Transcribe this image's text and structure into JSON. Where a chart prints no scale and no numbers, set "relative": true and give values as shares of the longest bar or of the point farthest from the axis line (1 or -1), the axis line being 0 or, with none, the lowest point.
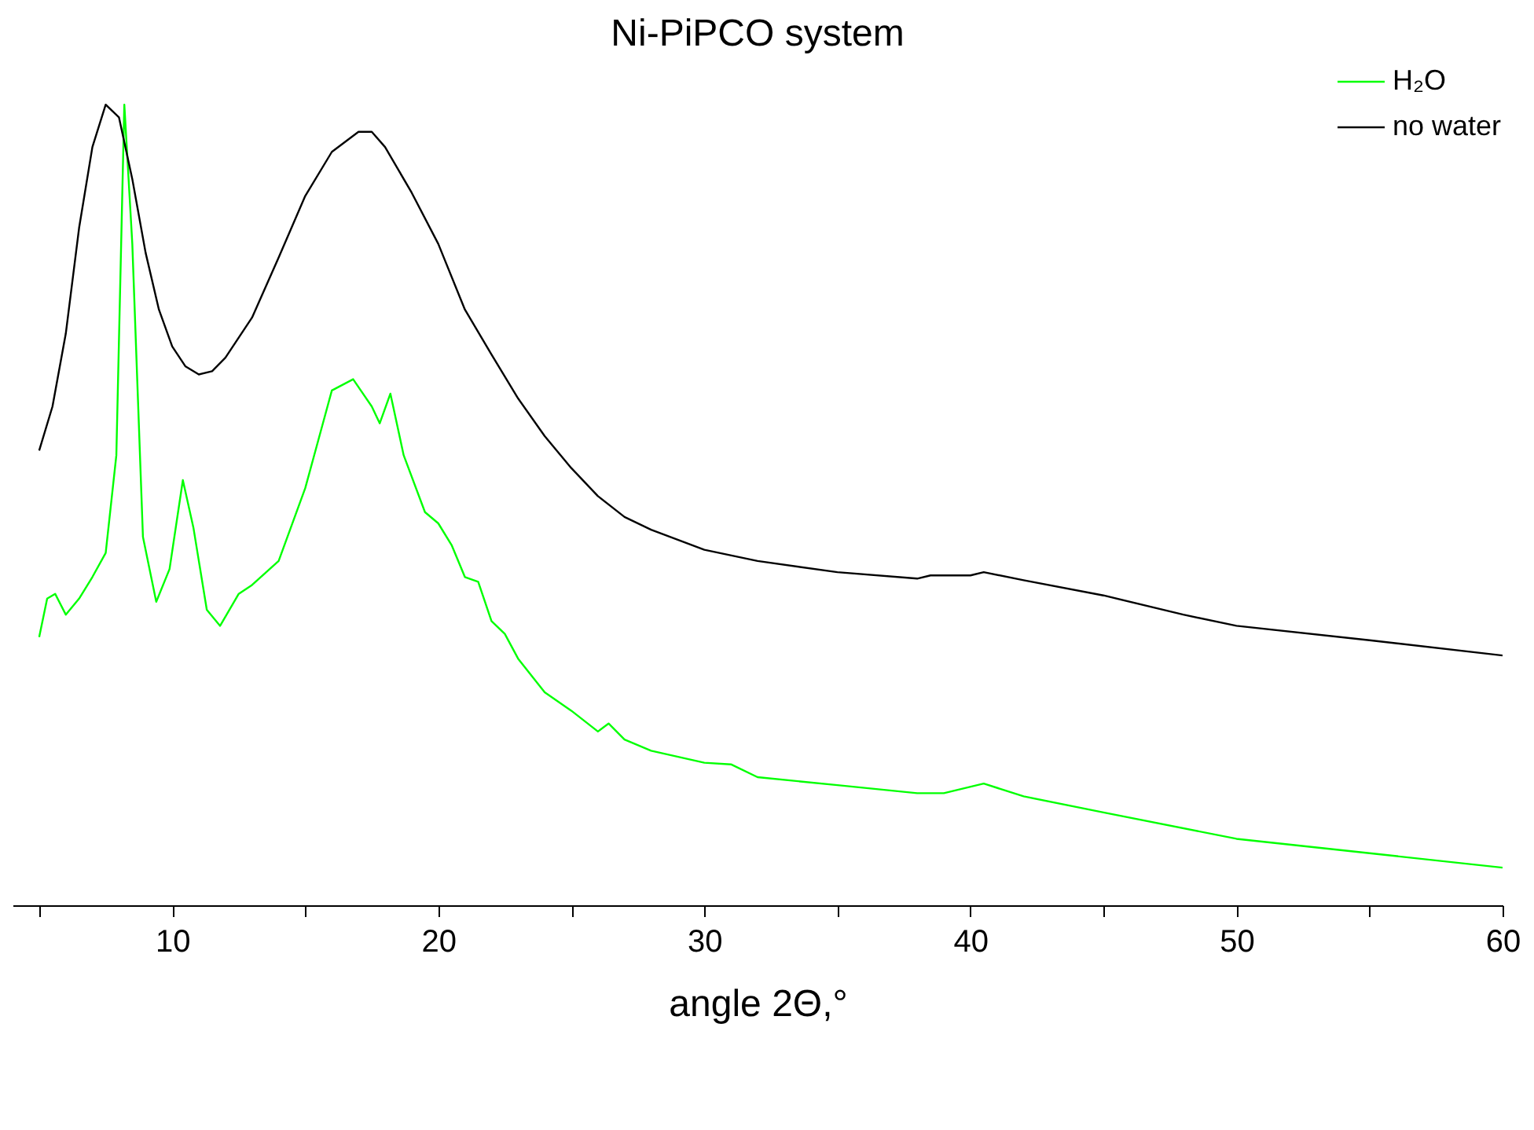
{
  "chart_data": {
    "type": "line",
    "title": "Ni-PiPCO system",
    "xlabel": "angle 2Θ,°",
    "relative": true,
    "legend": "top right",
    "grid": false,
    "xlim": [
      4,
      60
    ],
    "xticks": [
      {
        "value": 5,
        "label": null
      },
      10,
      {
        "value": 15,
        "label": null
      },
      20,
      {
        "value": 25,
        "label": null
      },
      30,
      {
        "value": 35,
        "label": null
      },
      40,
      {
        "value": 45,
        "label": null
      },
      50,
      {
        "value": 55,
        "label": null
      },
      60
    ],
    "series": [
      {
        "name": "H₂O",
        "color": "#00ff00",
        "x": [
          5,
          5.3,
          5.6,
          6,
          6.5,
          7,
          7.5,
          7.9,
          8.2,
          8.5,
          8.9,
          9.4,
          9.9,
          10.4,
          10.8,
          11.3,
          11.8,
          12.5,
          13,
          14,
          15,
          15.5,
          16,
          16.8,
          17.5,
          17.8,
          18.2,
          18.7,
          19.5,
          20,
          20.5,
          21,
          21.5,
          22,
          22.5,
          23,
          24,
          25,
          26,
          26.4,
          27,
          28,
          30,
          31,
          32,
          35,
          38,
          39,
          40.5,
          42,
          45,
          50,
          55,
          60
        ],
        "values": [
          0.335,
          0.383,
          0.389,
          0.363,
          0.383,
          0.41,
          0.44,
          0.562,
          1.0,
          0.826,
          0.46,
          0.379,
          0.42,
          0.531,
          0.471,
          0.369,
          0.349,
          0.389,
          0.4,
          0.43,
          0.521,
          0.582,
          0.643,
          0.657,
          0.623,
          0.602,
          0.639,
          0.562,
          0.491,
          0.477,
          0.45,
          0.41,
          0.404,
          0.355,
          0.339,
          0.308,
          0.266,
          0.243,
          0.217,
          0.227,
          0.207,
          0.193,
          0.178,
          0.176,
          0.16,
          0.15,
          0.14,
          0.14,
          0.152,
          0.136,
          0.116,
          0.083,
          0.065,
          0.047
        ]
      },
      {
        "name": "no water",
        "color": "#000000",
        "x": [
          5,
          5.5,
          6,
          6.5,
          7,
          7.5,
          8,
          8.5,
          9,
          9.5,
          10,
          10.5,
          11,
          11.5,
          12,
          13,
          14,
          15,
          16,
          17,
          17.5,
          18,
          19,
          20,
          21,
          22,
          23,
          24,
          25,
          26,
          27,
          28,
          30,
          32,
          35,
          38,
          38.5,
          40,
          40.5,
          42,
          45,
          48,
          50,
          55,
          60
        ],
        "values": [
          0.568,
          0.623,
          0.714,
          0.846,
          0.947,
          1.0,
          0.984,
          0.907,
          0.815,
          0.744,
          0.698,
          0.673,
          0.663,
          0.667,
          0.684,
          0.734,
          0.809,
          0.886,
          0.941,
          0.966,
          0.966,
          0.947,
          0.89,
          0.826,
          0.744,
          0.688,
          0.633,
          0.586,
          0.546,
          0.511,
          0.485,
          0.469,
          0.444,
          0.43,
          0.416,
          0.408,
          0.412,
          0.412,
          0.416,
          0.406,
          0.387,
          0.363,
          0.349,
          0.331,
          0.312
        ]
      }
    ]
  }
}
